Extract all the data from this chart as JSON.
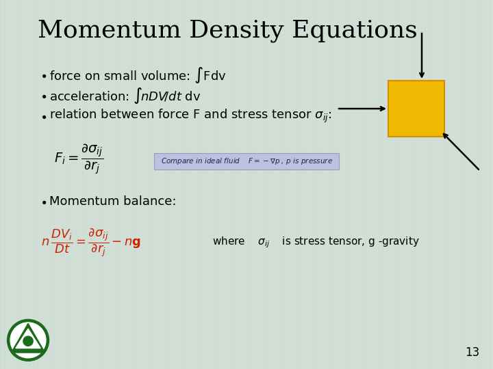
{
  "title": "Momentum Density Equations",
  "bg_top": "#c5d5cc",
  "bg_bot": "#dde8e0",
  "title_color": "#000000",
  "title_fontsize": 26,
  "bullet_color": "#000000",
  "bullet_fontsize": 13,
  "compare_box_color": "#b8bce0",
  "compare_border_color": "#9090bb",
  "square_color": "#f0b800",
  "square_border": "#d09000",
  "arrow_color": "#000000",
  "page_number": "13",
  "red_color": "#cc2200",
  "formula_color": "#000000"
}
